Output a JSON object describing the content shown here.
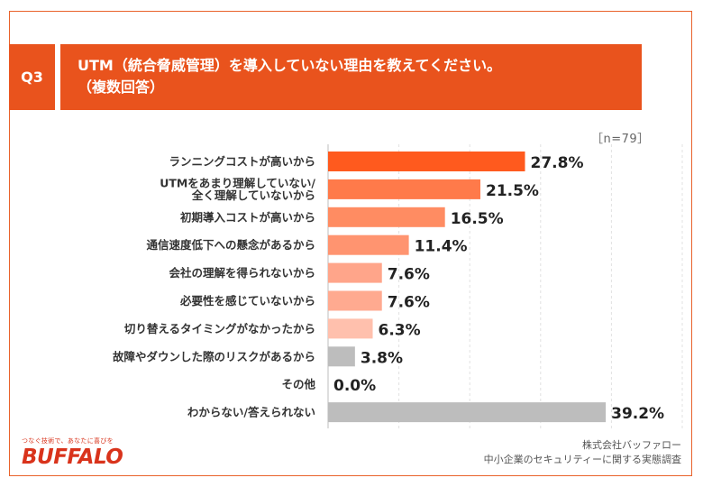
{
  "header": {
    "q_label": "Q3",
    "title_line1": "UTM（統合脅威管理）を導入していない理由を教えてください。",
    "title_line2": "（複数回答）"
  },
  "n_label": "［n=79］",
  "chart_data": {
    "type": "bar",
    "orientation": "horizontal",
    "title": "UTM（統合脅威管理）を導入していない理由を教えてください。（複数回答）",
    "unit": "%",
    "xlim": [
      0,
      50
    ],
    "grid": true,
    "categories": [
      [
        "ランニングコストが高いから"
      ],
      [
        "UTMをあまり理解していない/",
        "全く理解していないから"
      ],
      [
        "初期導入コストが高いから"
      ],
      [
        "通信速度低下への懸念があるから"
      ],
      [
        "会社の理解を得られないから"
      ],
      [
        "必要性を感じていないから"
      ],
      [
        "切り替えるタイミングがなかったから"
      ],
      [
        "故障やダウンした際のリスクがあるから"
      ],
      [
        "その他"
      ],
      [
        "わからない/答えられない"
      ]
    ],
    "values": [
      27.8,
      21.5,
      16.5,
      11.4,
      7.6,
      7.6,
      6.3,
      3.8,
      0.0,
      39.2
    ],
    "value_labels": [
      "27.8%",
      "21.5%",
      "16.5%",
      "11.4%",
      "7.6%",
      "7.6%",
      "6.3%",
      "3.8%",
      "0.0%",
      "39.2%"
    ],
    "colors": [
      "#ff5a1e",
      "#ff7a4a",
      "#ff8c62",
      "#ff9470",
      "#ffa58a",
      "#ffaa90",
      "#ffc0ad",
      "#bdbdbd",
      "#bdbdbd",
      "#bdbdbd"
    ]
  },
  "footer": {
    "company_line1": "株式会社バッファロー",
    "company_line2": "中小企業のセキュリティーに関する実態調査",
    "brand_tagline": "つなぐ技術で、あなたに喜びを",
    "brand_logo": "BUFFALO"
  }
}
